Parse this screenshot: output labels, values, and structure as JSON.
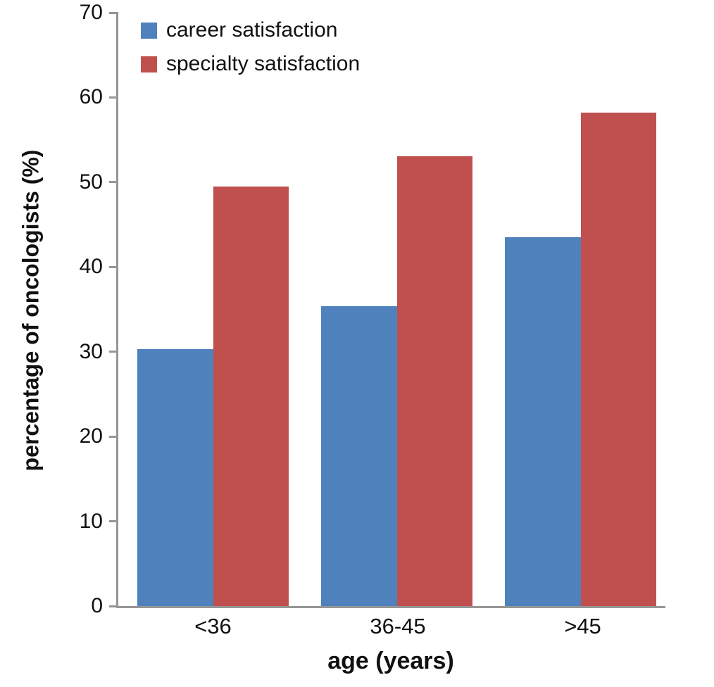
{
  "chart_data": {
    "type": "bar",
    "title": "",
    "categories": [
      "<36",
      "36-45",
      ">45"
    ],
    "series": [
      {
        "name": "career satisfaction",
        "color": "#4f81bd",
        "values": [
          30.3,
          35.4,
          43.5
        ]
      },
      {
        "name": "specialty satisfaction",
        "color": "#c0504d",
        "values": [
          49.5,
          53.1,
          58.2
        ]
      }
    ],
    "xlabel": "age (years)",
    "ylabel": "percentage of oncologists (%)",
    "ylim": [
      0,
      70
    ],
    "yticks": [
      0,
      10,
      20,
      30,
      40,
      50,
      60,
      70
    ],
    "legend_position": "top-left",
    "grid": false,
    "axis_color": "#969696"
  }
}
